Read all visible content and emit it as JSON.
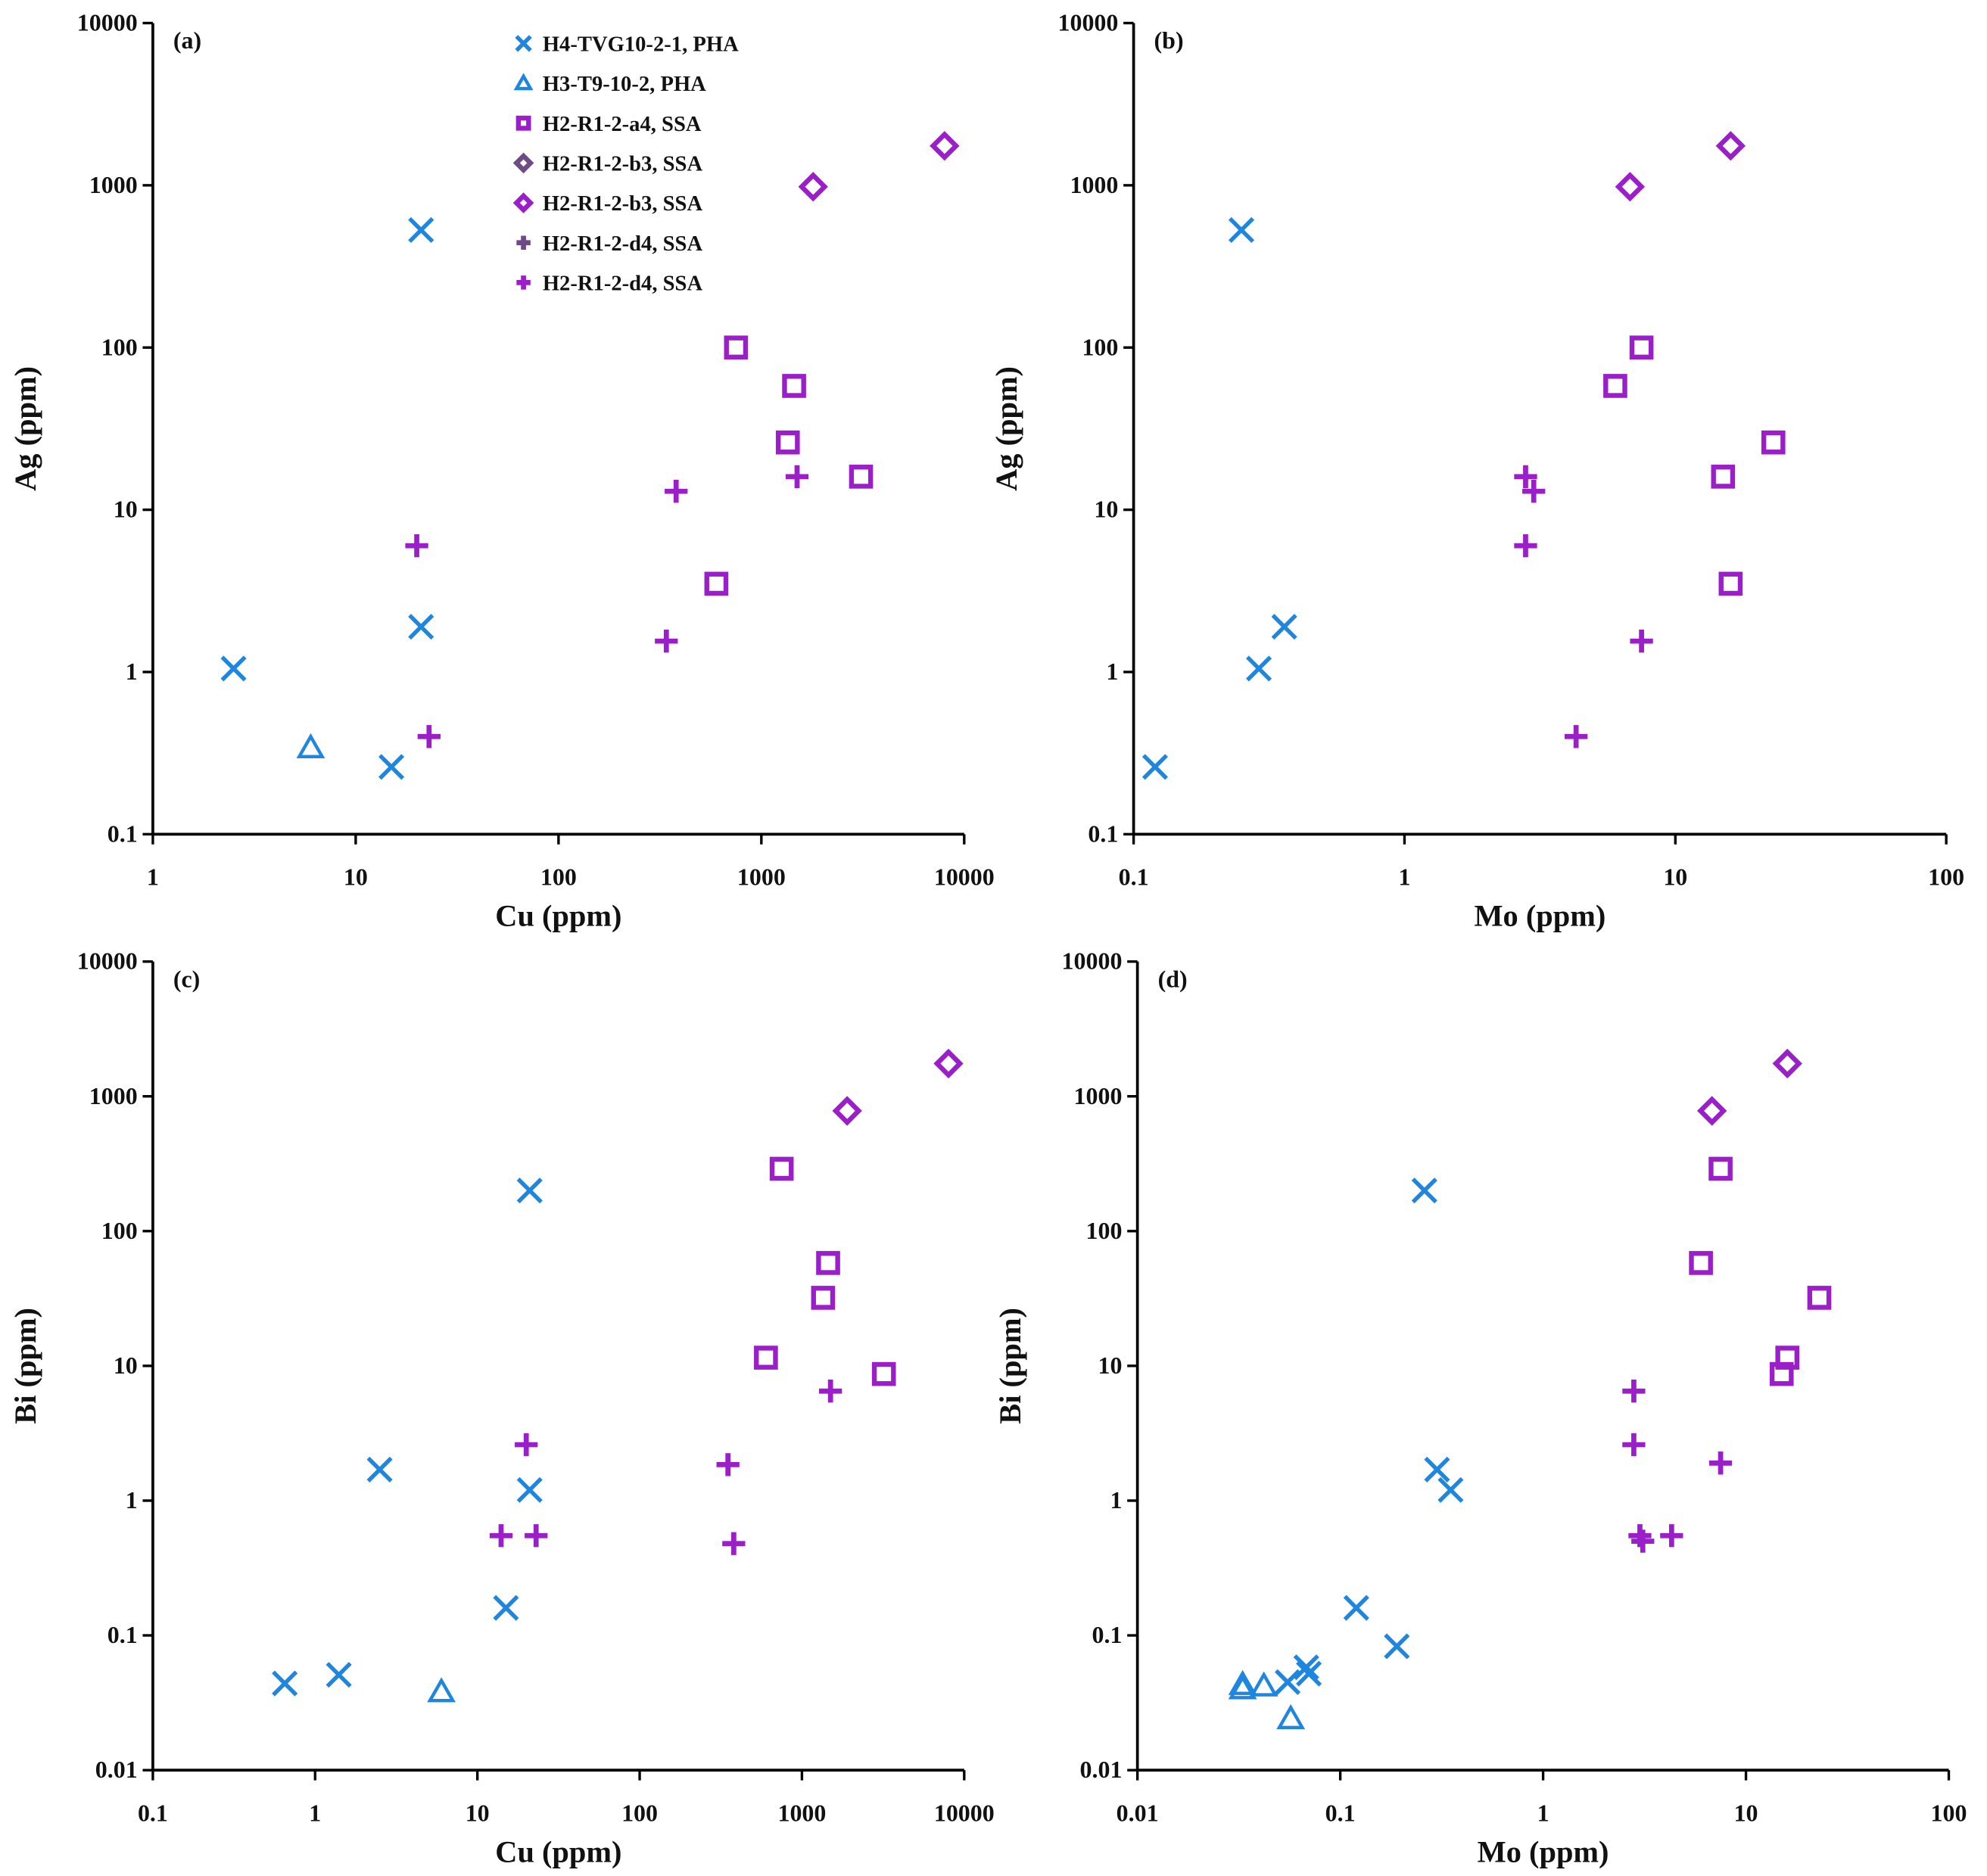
{
  "colors": {
    "blue": "#1f86e0",
    "purple": "#9b1fc8",
    "dark_purple": "#6e4a86"
  },
  "legend": [
    {
      "label": "H4-TVG10-2-1, PHA",
      "marker": "x",
      "color": "#1f86e0"
    },
    {
      "label": "H3-T9-10-2, PHA",
      "marker": "triangle",
      "color": "#1f86e0"
    },
    {
      "label": "H2-R1-2-a4, SSA",
      "marker": "square",
      "color": "#9b1fc8"
    },
    {
      "label": "H2-R1-2-b3, SSA",
      "marker": "diamond",
      "color": "#6e4a86"
    },
    {
      "label": "H2-R1-2-b3, SSA",
      "marker": "diamond",
      "color": "#9b1fc8"
    },
    {
      "label": "H2-R1-2-d4, SSA",
      "marker": "plus",
      "color": "#6e4a86"
    },
    {
      "label": "H2-R1-2-d4, SSA",
      "marker": "plus",
      "color": "#9b1fc8"
    }
  ],
  "chart_data": [
    {
      "type": "scatter",
      "panel": "(a)",
      "xlabel": "Cu (ppm)",
      "ylabel": "Ag (ppm)",
      "xscale": "log",
      "yscale": "log",
      "xlim": [
        1,
        10000
      ],
      "ylim": [
        0.1,
        10000
      ],
      "xticks": [
        "1",
        "10",
        "100",
        "1000",
        "10000"
      ],
      "yticks": [
        "0.1",
        "1",
        "10",
        "100",
        "1000",
        "10000"
      ],
      "series": [
        {
          "legend": 0,
          "points": [
            [
              2.5,
              1.05
            ],
            [
              21,
              530
            ],
            [
              21,
              1.9
            ],
            [
              15,
              0.26
            ]
          ]
        },
        {
          "legend": 1,
          "points": [
            [
              6,
              0.34
            ]
          ]
        },
        {
          "legend": 2,
          "points": [
            [
              750,
              100
            ],
            [
              1450,
              58
            ],
            [
              1350,
              26
            ],
            [
              3100,
              16
            ],
            [
              600,
              3.5
            ]
          ]
        },
        {
          "legend": 4,
          "points": [
            [
              1800,
              980
            ],
            [
              8000,
              1750
            ]
          ]
        },
        {
          "legend": 6,
          "points": [
            [
              20,
              6
            ],
            [
              380,
              13
            ],
            [
              1500,
              16
            ],
            [
              340,
              1.55
            ],
            [
              23,
              0.4
            ]
          ]
        }
      ]
    },
    {
      "type": "scatter",
      "panel": "(b)",
      "xlabel": "Mo (ppm)",
      "ylabel": "Ag (ppm)",
      "xscale": "log",
      "yscale": "log",
      "xlim": [
        0.1,
        100
      ],
      "ylim": [
        0.1,
        10000
      ],
      "xticks": [
        "0.1",
        "1",
        "10",
        "100"
      ],
      "yticks": [
        "0.1",
        "1",
        "10",
        "100",
        "1000",
        "10000"
      ],
      "series": [
        {
          "legend": 0,
          "points": [
            [
              0.25,
              530
            ],
            [
              0.29,
              1.05
            ],
            [
              0.36,
              1.9
            ],
            [
              0.12,
              0.26
            ]
          ]
        },
        {
          "legend": 2,
          "points": [
            [
              7.5,
              100
            ],
            [
              6,
              58
            ],
            [
              23,
              26
            ],
            [
              15,
              16
            ],
            [
              16,
              3.5
            ]
          ]
        },
        {
          "legend": 4,
          "points": [
            [
              6.8,
              980
            ],
            [
              16,
              1750
            ]
          ]
        },
        {
          "legend": 6,
          "points": [
            [
              2.8,
              16
            ],
            [
              3,
              13
            ],
            [
              2.8,
              6
            ],
            [
              7.5,
              1.55
            ],
            [
              4.3,
              0.4
            ]
          ]
        }
      ]
    },
    {
      "type": "scatter",
      "panel": "(c)",
      "xlabel": "Cu (ppm)",
      "ylabel": "Bi (ppm)",
      "xscale": "log",
      "yscale": "log",
      "xlim": [
        0.1,
        10000
      ],
      "ylim": [
        0.01,
        10000
      ],
      "xticks": [
        "0.1",
        "1",
        "10",
        "100",
        "1000",
        "10000"
      ],
      "yticks": [
        "0.01",
        "0.1",
        "1",
        "10",
        "100",
        "1000",
        "10000"
      ],
      "series": [
        {
          "legend": 0,
          "points": [
            [
              21,
              200
            ],
            [
              2.5,
              1.7
            ],
            [
              21,
              1.2
            ],
            [
              15,
              0.16
            ],
            [
              0.65,
              0.044
            ],
            [
              1.4,
              0.051
            ]
          ]
        },
        {
          "legend": 1,
          "points": [
            [
              6,
              0.038
            ]
          ]
        },
        {
          "legend": 2,
          "points": [
            [
              750,
              290
            ],
            [
              1450,
              58
            ],
            [
              1350,
              32
            ],
            [
              600,
              11.5
            ],
            [
              3200,
              8.7
            ]
          ]
        },
        {
          "legend": 4,
          "points": [
            [
              1900,
              780
            ],
            [
              8000,
              1750
            ]
          ]
        },
        {
          "legend": 6,
          "points": [
            [
              20,
              2.6
            ],
            [
              14,
              0.55
            ],
            [
              23,
              0.55
            ],
            [
              350,
              1.85
            ],
            [
              380,
              0.48
            ],
            [
              1500,
              6.5
            ]
          ]
        }
      ]
    },
    {
      "type": "scatter",
      "panel": "(d)",
      "xlabel": "Mo (ppm)",
      "ylabel": "Bi (ppm)",
      "xscale": "log",
      "yscale": "log",
      "xlim": [
        0.01,
        100
      ],
      "ylim": [
        0.01,
        10000
      ],
      "xticks": [
        "0.01",
        "0.1",
        "1",
        "10",
        "100"
      ],
      "yticks": [
        "0.01",
        "0.1",
        "1",
        "10",
        "100",
        "1000",
        "10000"
      ],
      "series": [
        {
          "legend": 0,
          "points": [
            [
              0.26,
              200
            ],
            [
              0.3,
              1.7
            ],
            [
              0.35,
              1.2
            ],
            [
              0.12,
              0.16
            ],
            [
              0.19,
              0.083
            ],
            [
              0.055,
              0.045
            ],
            [
              0.068,
              0.058
            ],
            [
              0.07,
              0.052
            ]
          ]
        },
        {
          "legend": 1,
          "points": [
            [
              0.033,
              0.04
            ],
            [
              0.033,
              0.043
            ],
            [
              0.042,
              0.042
            ],
            [
              0.057,
              0.024
            ]
          ]
        },
        {
          "legend": 2,
          "points": [
            [
              7.5,
              290
            ],
            [
              6,
              58
            ],
            [
              23,
              32
            ],
            [
              16,
              11.5
            ],
            [
              15,
              8.7
            ]
          ]
        },
        {
          "legend": 4,
          "points": [
            [
              6.8,
              780
            ],
            [
              16,
              1750
            ]
          ]
        },
        {
          "legend": 6,
          "points": [
            [
              2.8,
              6.5
            ],
            [
              2.8,
              2.6
            ],
            [
              3,
              0.55
            ],
            [
              3.1,
              0.5
            ],
            [
              4.3,
              0.55
            ],
            [
              7.5,
              1.9
            ]
          ]
        }
      ]
    }
  ]
}
